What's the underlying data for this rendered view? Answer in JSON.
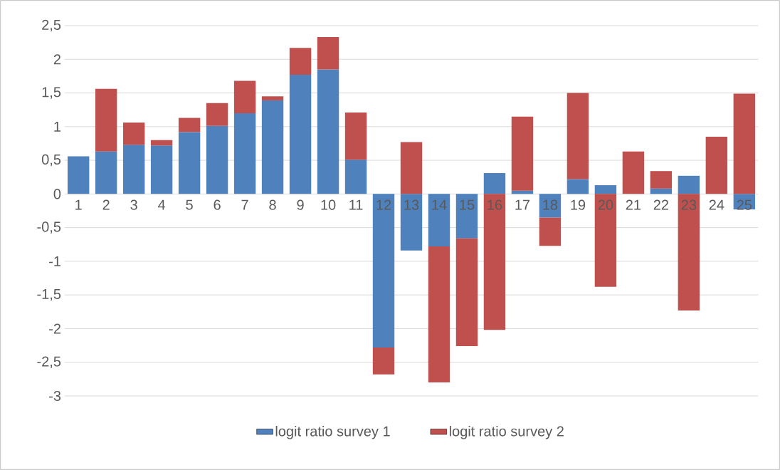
{
  "chart_data": {
    "type": "bar",
    "stacked": true,
    "categories": [
      "1",
      "2",
      "3",
      "4",
      "5",
      "6",
      "7",
      "8",
      "9",
      "10",
      "11",
      "12",
      "13",
      "14",
      "15",
      "16",
      "17",
      "18",
      "19",
      "20",
      "21",
      "22",
      "23",
      "24",
      "25"
    ],
    "series": [
      {
        "name": "logit ratio survey 1",
        "color": "#4f81bd",
        "values": [
          0.56,
          0.63,
          0.73,
          0.72,
          0.92,
          1.01,
          1.2,
          1.39,
          1.77,
          1.85,
          0.51,
          -2.28,
          -0.84,
          -0.78,
          -0.66,
          0.31,
          0.05,
          -0.35,
          0.22,
          0.13,
          0,
          0.08,
          0.27,
          0,
          -0.23
        ]
      },
      {
        "name": "logit ratio survey 2",
        "color": "#c0504d",
        "values": [
          0,
          0.93,
          0.33,
          0.08,
          0.21,
          0.34,
          0.48,
          0.06,
          0.4,
          0.48,
          0.7,
          -0.4,
          0.77,
          -2.02,
          -1.6,
          -2.02,
          1.1,
          -0.42,
          1.28,
          -1.38,
          0.63,
          0.26,
          -1.73,
          0.85,
          1.49
        ]
      }
    ],
    "ylim": [
      -3,
      2.5
    ],
    "yticks": [
      {
        "value": -3,
        "label": "-3"
      },
      {
        "value": -2.5,
        "label": "-2,5"
      },
      {
        "value": -2,
        "label": "-2"
      },
      {
        "value": -1.5,
        "label": "-1,5"
      },
      {
        "value": -1,
        "label": "-1"
      },
      {
        "value": -0.5,
        "label": "-0,5"
      },
      {
        "value": 0,
        "label": "0"
      },
      {
        "value": 0.5,
        "label": "0,5"
      },
      {
        "value": 1,
        "label": "1"
      },
      {
        "value": 1.5,
        "label": "1,5"
      },
      {
        "value": 2,
        "label": "2"
      },
      {
        "value": 2.5,
        "label": "2,5"
      }
    ],
    "grid": "y",
    "legend": "bottom"
  }
}
